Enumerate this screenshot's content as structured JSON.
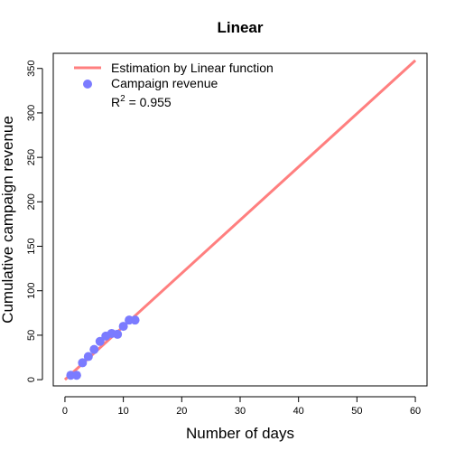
{
  "chart_data": {
    "type": "scatter",
    "title": "Linear",
    "xlabel": "Number of days",
    "ylabel": "Cumulative campaign revenue",
    "xlim": [
      -2,
      62
    ],
    "ylim": [
      -7,
      367
    ],
    "xticks": [
      0,
      10,
      20,
      30,
      40,
      50,
      60
    ],
    "yticks": [
      0,
      50,
      100,
      150,
      200,
      250,
      300,
      350
    ],
    "grid": false,
    "legend_position": "top-left",
    "series": [
      {
        "name": "Estimation by Linear function",
        "kind": "line",
        "color": "#ff7f7f",
        "x": [
          0,
          60
        ],
        "y": [
          0,
          359
        ]
      },
      {
        "name": "Campaign revenue",
        "kind": "points",
        "color": "#7b7bff",
        "x": [
          1,
          2,
          3,
          4,
          5,
          6,
          7,
          8,
          9,
          10,
          11,
          12
        ],
        "y": [
          5,
          5,
          19,
          26,
          34,
          43,
          49,
          52,
          51,
          60,
          67,
          67
        ]
      }
    ],
    "annotation": {
      "base": "R",
      "sup": "2",
      "rest": " = 0.955"
    }
  }
}
